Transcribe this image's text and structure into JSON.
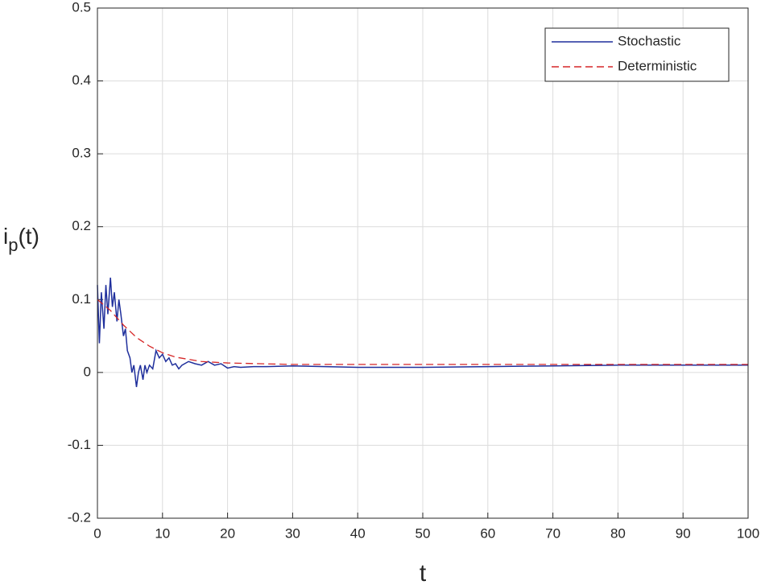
{
  "chart_data": {
    "type": "line",
    "x_label": "t",
    "y_label": [
      "i",
      "p",
      "(t)"
    ],
    "xlim": [
      0,
      100
    ],
    "xticks": [
      0,
      10,
      20,
      30,
      40,
      50,
      60,
      70,
      80,
      90,
      100
    ],
    "ylim": [
      -0.2,
      0.5
    ],
    "yticks": [
      -0.2,
      -0.1,
      0,
      0.1,
      0.2,
      0.3,
      0.4,
      0.5
    ],
    "grid": true,
    "legend": "upper right",
    "series": [
      {
        "name": "Stochastic",
        "color": "#1f2f9c",
        "style": "solid",
        "x": [
          0,
          0.3,
          0.6,
          1,
          1.3,
          1.6,
          2,
          2.3,
          2.6,
          3,
          3.3,
          3.6,
          4,
          4.3,
          4.6,
          5,
          5.3,
          5.6,
          6,
          6.3,
          6.6,
          7,
          7.3,
          7.6,
          8,
          8.5,
          9,
          9.5,
          10,
          10.5,
          11,
          11.5,
          12,
          12.5,
          13,
          14,
          15,
          16,
          17,
          18,
          19,
          20,
          21,
          22,
          24,
          26,
          30,
          35,
          40,
          50,
          60,
          70,
          80,
          90,
          100
        ],
        "values": [
          0.12,
          0.04,
          0.11,
          0.06,
          0.12,
          0.08,
          0.13,
          0.09,
          0.11,
          0.07,
          0.1,
          0.08,
          0.05,
          0.06,
          0.03,
          0.02,
          0.0,
          0.01,
          -0.02,
          0.0,
          0.01,
          -0.01,
          0.01,
          0.0,
          0.01,
          0.005,
          0.03,
          0.02,
          0.025,
          0.015,
          0.02,
          0.01,
          0.012,
          0.005,
          0.01,
          0.015,
          0.012,
          0.01,
          0.015,
          0.01,
          0.012,
          0.006,
          0.008,
          0.007,
          0.008,
          0.008,
          0.009,
          0.008,
          0.007,
          0.007,
          0.008,
          0.009,
          0.01,
          0.01,
          0.01
        ]
      },
      {
        "name": "Deterministic",
        "color": "#d62728",
        "style": "dashed",
        "x": [
          0,
          2,
          4,
          6,
          8,
          10,
          12,
          14,
          16,
          18,
          20,
          25,
          30,
          40,
          50,
          60,
          70,
          80,
          90,
          100
        ],
        "values": [
          0.1,
          0.085,
          0.065,
          0.048,
          0.036,
          0.027,
          0.021,
          0.018,
          0.015,
          0.014,
          0.013,
          0.012,
          0.011,
          0.011,
          0.011,
          0.011,
          0.011,
          0.011,
          0.011,
          0.011
        ]
      }
    ]
  }
}
